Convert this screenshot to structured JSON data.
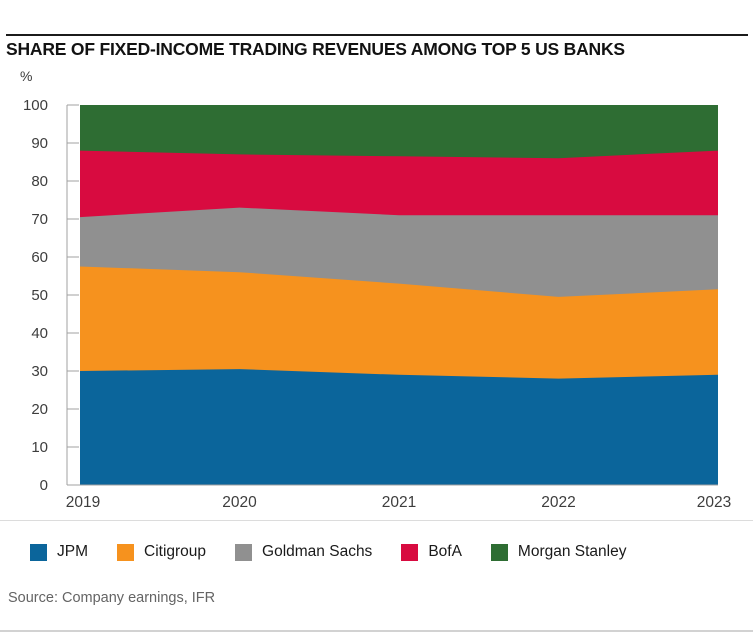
{
  "header": {
    "title": "SHARE OF FIXED-INCOME TRADING REVENUES AMONG TOP 5 US BANKS",
    "unit_label": "%"
  },
  "chart_data": {
    "type": "area",
    "stacked": true,
    "title": "SHARE OF FIXED-INCOME TRADING REVENUES AMONG TOP 5 US BANKS",
    "xlabel": "",
    "ylabel": "%",
    "x": [
      2019,
      2020,
      2021,
      2022,
      2023
    ],
    "series": [
      {
        "name": "JPM",
        "color": "#0B659B",
        "values": [
          30,
          30.5,
          29,
          28,
          29
        ]
      },
      {
        "name": "Citigroup",
        "color": "#F6921E",
        "values": [
          27.5,
          25.5,
          24,
          21.5,
          22.5
        ]
      },
      {
        "name": "Goldman Sachs",
        "color": "#909090",
        "values": [
          13,
          17,
          18,
          21.5,
          19.5
        ]
      },
      {
        "name": "BofA",
        "color": "#D80B40",
        "values": [
          17.5,
          14,
          15.5,
          15,
          17
        ]
      },
      {
        "name": "Morgan Stanley",
        "color": "#2E6D33",
        "values": [
          12,
          13,
          13.5,
          14,
          12
        ]
      }
    ],
    "cumulative_toplines": {
      "JPM": [
        30,
        30.5,
        29,
        28,
        29
      ],
      "Citigroup": [
        57.5,
        56,
        53,
        49.5,
        51.5
      ],
      "Goldman Sachs": [
        70.5,
        73,
        71,
        71,
        71
      ],
      "BofA": [
        88,
        87,
        86.5,
        86,
        88
      ],
      "Morgan Stanley": [
        100,
        100,
        100,
        100,
        100
      ]
    },
    "ylim": [
      0,
      100
    ],
    "ytick_step": 10,
    "ytick_labels": [
      "0",
      "10",
      "20",
      "30",
      "40",
      "50",
      "60",
      "70",
      "80",
      "90",
      "100"
    ],
    "xtick_labels": [
      "2019",
      "2020",
      "2021",
      "2022",
      "2023"
    ],
    "grid": false,
    "legend_position": "bottom",
    "axis_color": "#a0a0a0",
    "tick_label_color": "#3d3d3d"
  },
  "footer": {
    "source": "Source: Company earnings, IFR"
  }
}
